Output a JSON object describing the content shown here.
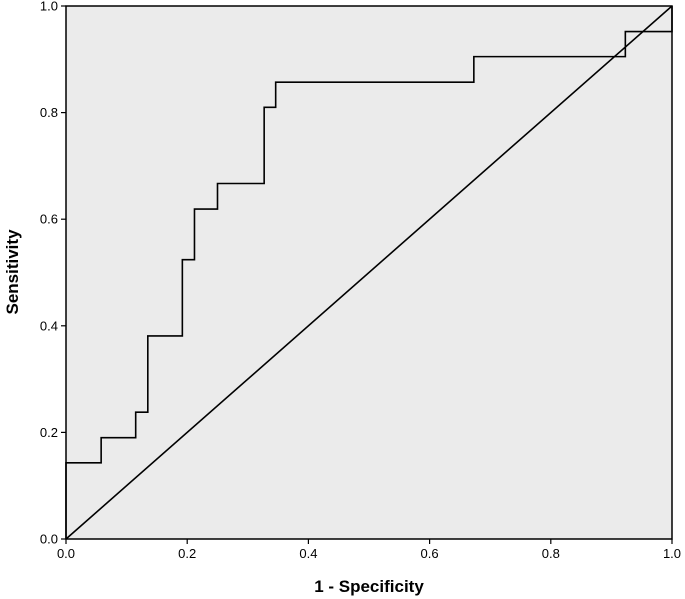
{
  "chart_data": {
    "type": "line",
    "xlabel": "1 - Specificity",
    "ylabel": "Sensitivity",
    "xlim": [
      0,
      1
    ],
    "ylim": [
      0,
      1
    ],
    "x_ticks": [
      "0.0",
      "0.2",
      "0.4",
      "0.6",
      "0.8",
      "1.0"
    ],
    "y_ticks": [
      "0.0",
      "0.2",
      "0.4",
      "0.6",
      "0.8",
      "1.0"
    ],
    "grid": false,
    "legend": "none",
    "series": [
      {
        "kind": "step",
        "x": [
          0.0,
          0.0,
          0.058,
          0.058,
          0.115,
          0.115,
          0.135,
          0.135,
          0.192,
          0.192,
          0.212,
          0.212,
          0.25,
          0.25,
          0.327,
          0.327,
          0.346,
          0.346,
          0.673,
          0.673,
          0.923,
          0.923,
          1.0,
          1.0
        ],
        "y": [
          0.0,
          0.143,
          0.143,
          0.19,
          0.19,
          0.238,
          0.238,
          0.381,
          0.381,
          0.524,
          0.524,
          0.619,
          0.619,
          0.667,
          0.667,
          0.81,
          0.81,
          0.857,
          0.857,
          0.905,
          0.905,
          0.952,
          0.952,
          1.0
        ]
      },
      {
        "kind": "reference",
        "x": [
          0,
          1
        ],
        "y": [
          0,
          1
        ]
      }
    ],
    "colors": {
      "plot_background": "#ebebeb",
      "line": "#000000"
    }
  }
}
